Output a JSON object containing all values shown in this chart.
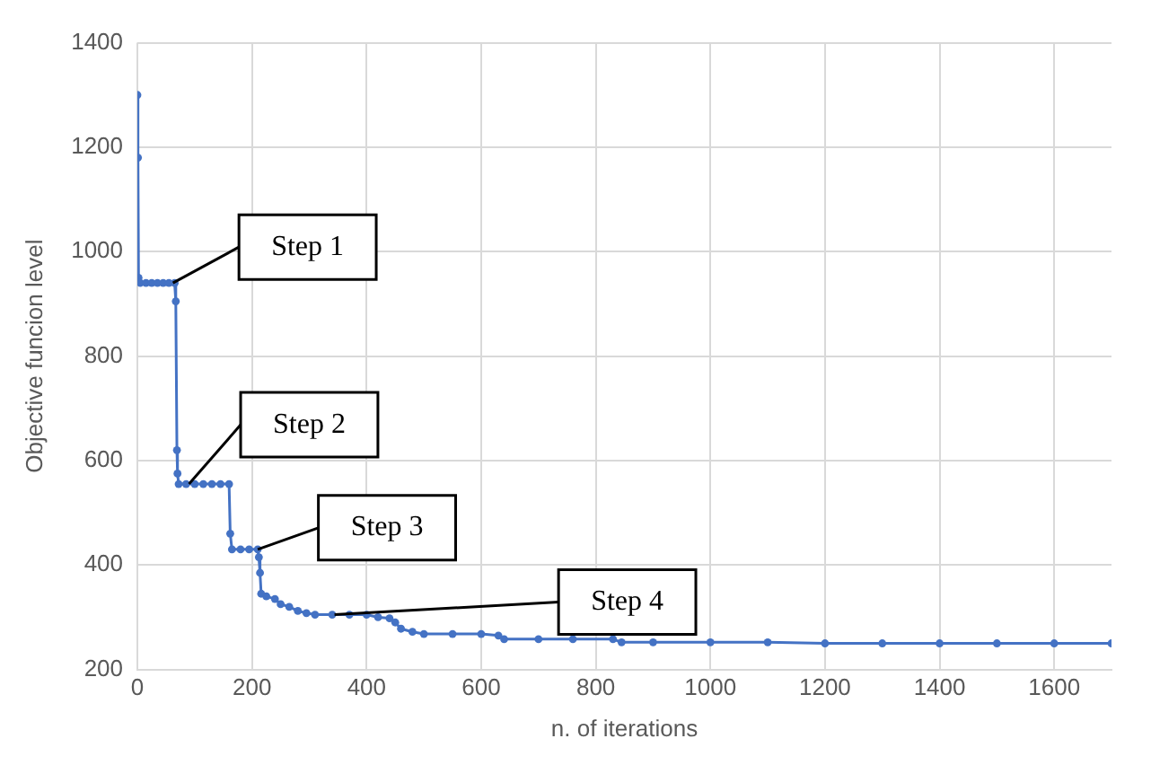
{
  "chart_data": {
    "type": "line",
    "xlabel": "n. of iterations",
    "ylabel": "Objective funcion level",
    "x": [
      0,
      1,
      2,
      5,
      15,
      25,
      35,
      45,
      55,
      65,
      67,
      69,
      70,
      72,
      85,
      100,
      115,
      130,
      145,
      160,
      162,
      165,
      180,
      195,
      210,
      212,
      214,
      216,
      225,
      240,
      250,
      265,
      280,
      295,
      310,
      340,
      370,
      400,
      420,
      440,
      450,
      460,
      480,
      500,
      550,
      600,
      630,
      640,
      700,
      760,
      830,
      845,
      900,
      1000,
      1100,
      1200,
      1300,
      1400,
      1500,
      1600,
      1700
    ],
    "series": [
      {
        "color": "#4472c4",
        "values": [
          1300,
          1180,
          950,
          940,
          940,
          940,
          940,
          940,
          940,
          940,
          905,
          620,
          575,
          555,
          555,
          555,
          555,
          555,
          555,
          555,
          460,
          430,
          430,
          430,
          430,
          415,
          385,
          345,
          340,
          335,
          325,
          320,
          312,
          308,
          305,
          305,
          305,
          305,
          300,
          298,
          290,
          278,
          272,
          268,
          268,
          268,
          265,
          258,
          258,
          258,
          258,
          252,
          252,
          252,
          252,
          250,
          250,
          250,
          250,
          250,
          250
        ]
      }
    ],
    "xlim": [
      0,
      1700
    ],
    "xticks": [
      0,
      200,
      400,
      600,
      800,
      1000,
      1200,
      1400,
      1600
    ],
    "ylim": [
      200,
      1400
    ],
    "yticks": [
      200,
      400,
      600,
      800,
      1000,
      1200,
      1400
    ],
    "grid": true,
    "legend": false,
    "marker": "circle",
    "line_style": "solid",
    "annotations": [
      {
        "text": "Step 1",
        "x": 62,
        "y": 940
      },
      {
        "text": "Step 2",
        "x": 90,
        "y": 555
      },
      {
        "text": "Step 3",
        "x": 210,
        "y": 430
      },
      {
        "text": "Step 4",
        "x": 344,
        "y": 305
      }
    ]
  }
}
